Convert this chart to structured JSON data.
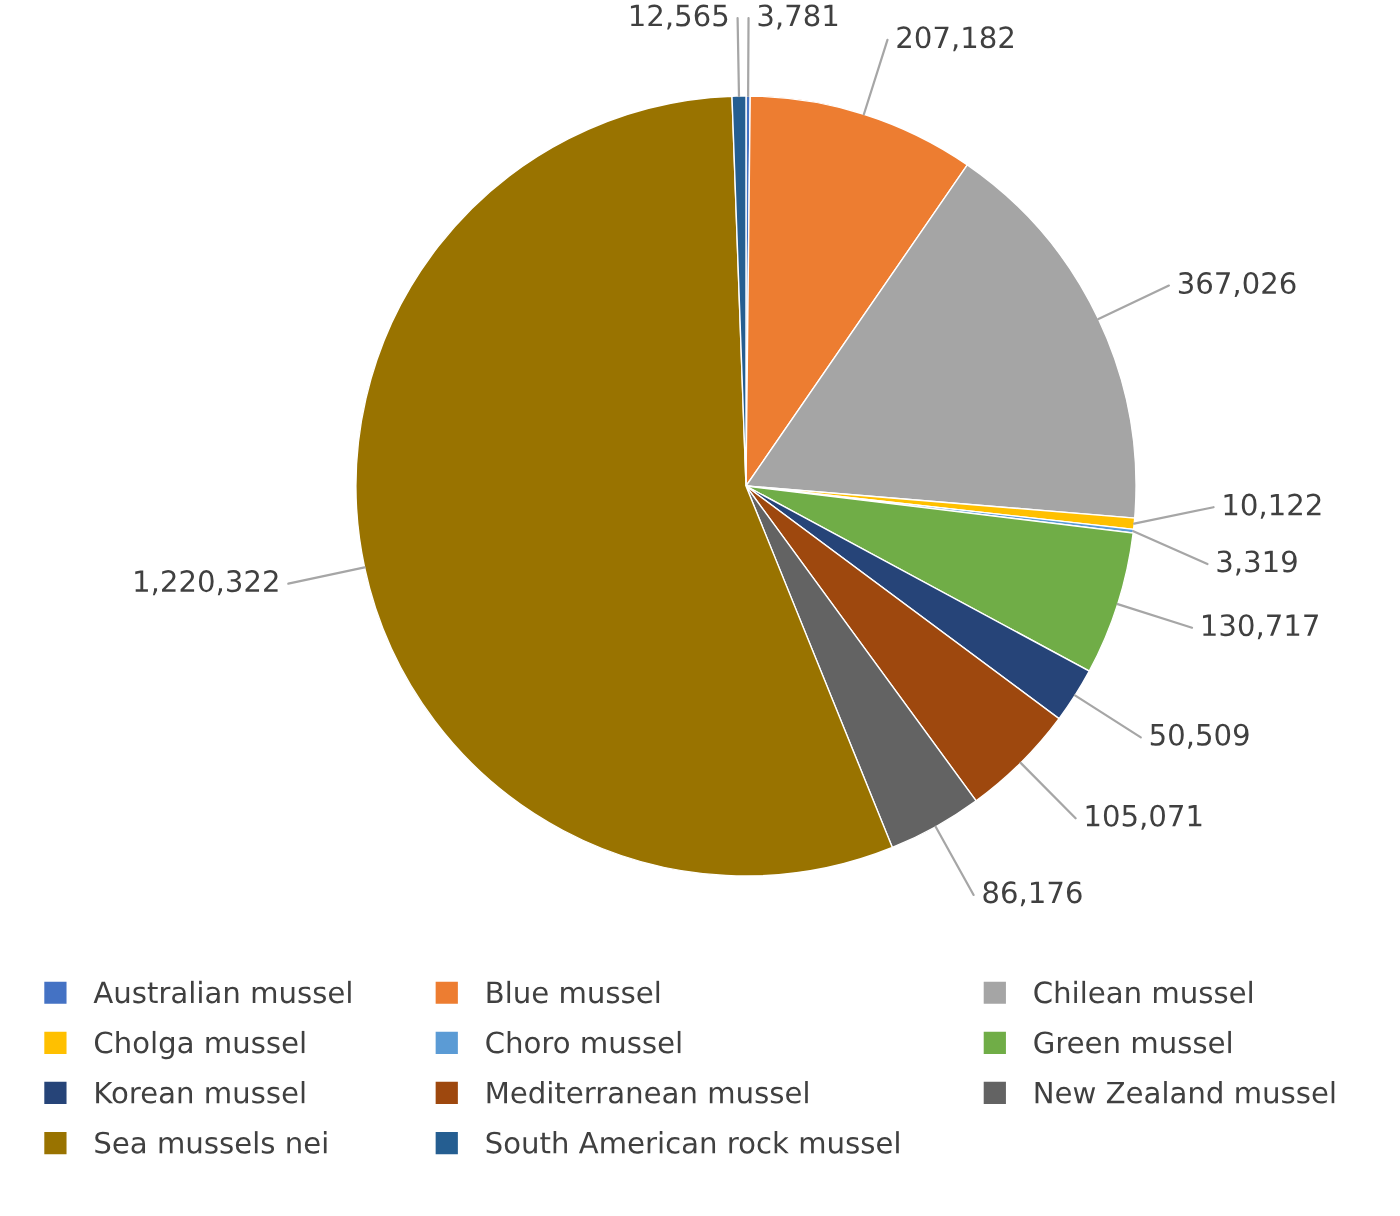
{
  "chart_data": {
    "type": "pie",
    "categories": [
      "Australian mussel",
      "Blue mussel",
      "Chilean mussel",
      "Cholga mussel",
      "Choro mussel",
      "Green mussel",
      "Korean mussel",
      "Mediterranean mussel",
      "New Zealand mussel",
      "Sea mussels nei",
      "South American rock mussel"
    ],
    "values": [
      3781,
      207182,
      367026,
      10122,
      3319,
      130717,
      50509,
      105071,
      86176,
      1220322,
      12565
    ],
    "value_labels": [
      "3,781",
      "207,182",
      "367,026",
      "10,122",
      "3,319",
      "130,717",
      "50,509",
      "105,071",
      "86,176",
      "1,220,322",
      "12,565"
    ],
    "colors": [
      "#4472c4",
      "#ed7d31",
      "#a5a5a5",
      "#ffc000",
      "#5b9bd5",
      "#70ad47",
      "#264478",
      "#9e480e",
      "#636363",
      "#997300",
      "#255e91"
    ],
    "legend": "bottom"
  }
}
